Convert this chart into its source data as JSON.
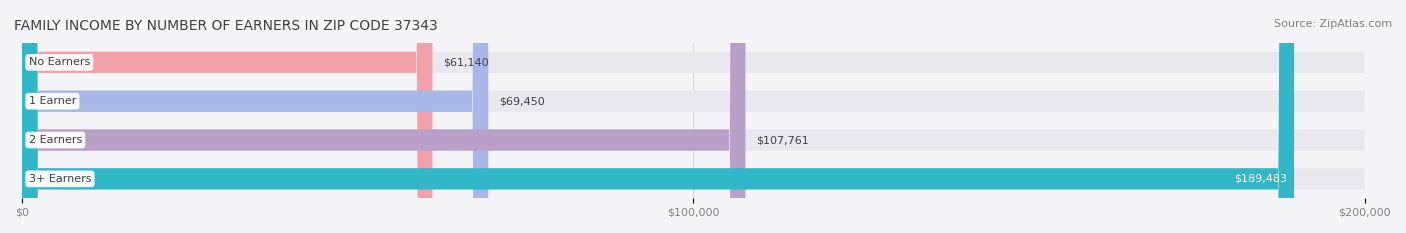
{
  "title": "FAMILY INCOME BY NUMBER OF EARNERS IN ZIP CODE 37343",
  "source": "Source: ZipAtlas.com",
  "categories": [
    "No Earners",
    "1 Earner",
    "2 Earners",
    "3+ Earners"
  ],
  "values": [
    61140,
    69450,
    107761,
    189483
  ],
  "value_labels": [
    "$61,140",
    "$69,450",
    "$107,761",
    "$189,483"
  ],
  "bar_colors": [
    "#f4a0a8",
    "#a8b8e8",
    "#b8a0c8",
    "#30b8c8"
  ],
  "bar_bg_color": "#e8e8ee",
  "label_bg_color": "#ffffff",
  "xlim": [
    0,
    200000
  ],
  "xticks": [
    0,
    100000,
    200000
  ],
  "xtick_labels": [
    "$0",
    "$100,000",
    "$200,000"
  ],
  "background_color": "#f5f5f8",
  "title_fontsize": 10,
  "source_fontsize": 8,
  "bar_height": 0.55,
  "title_color": "#404040",
  "source_color": "#808080",
  "value_label_color_dark": "#404040",
  "value_label_color_light": "#ffffff"
}
